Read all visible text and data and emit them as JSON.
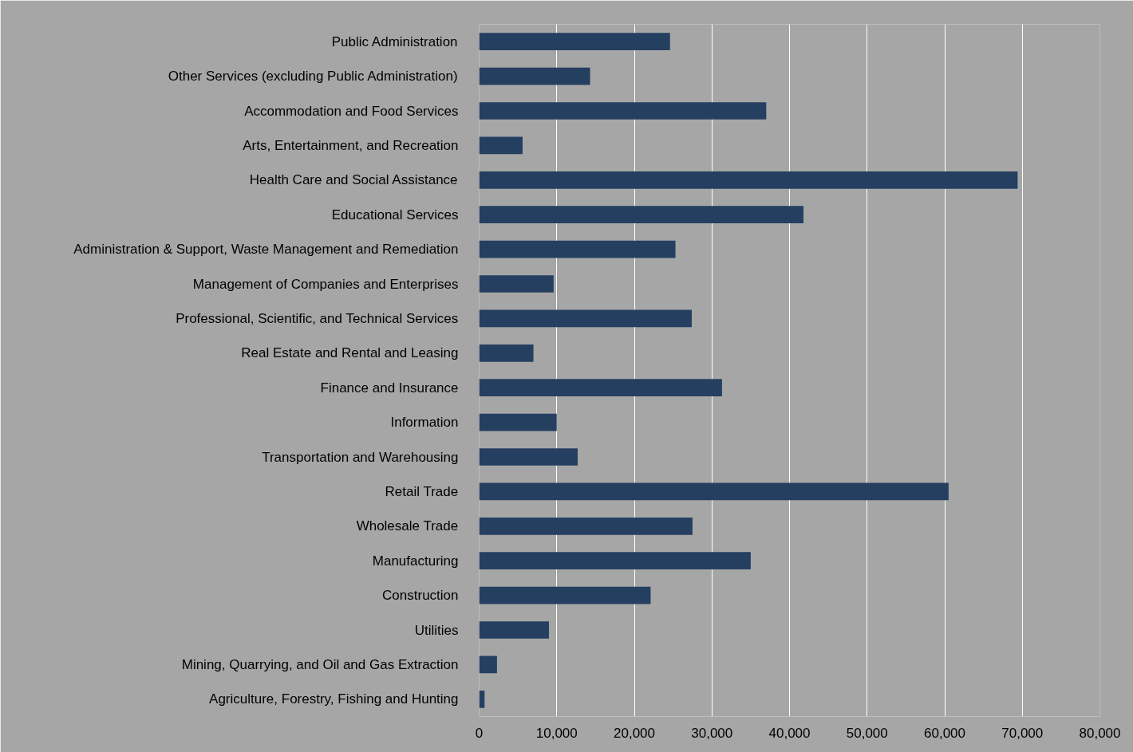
{
  "chart_data": {
    "type": "bar",
    "orientation": "horizontal",
    "categories": [
      "Public Administration",
      "Other Services (excluding Public Administration)",
      "Accommodation and Food Services",
      "Arts, Entertainment, and Recreation",
      "Health Care and Social Assistance",
      "Educational Services",
      "Administration & Support, Waste Management and Remediation",
      "Management of Companies and Enterprises",
      "Professional, Scientific, and Technical Services",
      "Real Estate and Rental and Leasing",
      "Finance and Insurance",
      "Information",
      "Transportation and Warehousing",
      "Retail Trade",
      "Wholesale Trade",
      "Manufacturing",
      "Construction",
      "Utilities",
      "Mining, Quarrying, and Oil and Gas Extraction",
      "Agriculture, Forestry, Fishing and Hunting"
    ],
    "values": [
      24600,
      14300,
      37000,
      5600,
      69400,
      41800,
      25300,
      9600,
      27400,
      7000,
      31300,
      10000,
      12700,
      60500,
      27500,
      35000,
      22100,
      9000,
      2300,
      700
    ],
    "color": "#243f60",
    "xlim": [
      0,
      80000
    ],
    "xticks": [
      0,
      {
        "value": 10000,
        "label": "10,000"
      },
      {
        "value": 20000,
        "label": "20,000"
      },
      {
        "value": 30000,
        "label": "30,000"
      },
      {
        "value": 40000,
        "label": "40,000"
      },
      {
        "value": 50000,
        "label": "50,000"
      },
      {
        "value": 60000,
        "label": "60,000"
      },
      {
        "value": 70000,
        "label": "70,000"
      },
      {
        "value": 80000,
        "label": "80,000"
      }
    ],
    "grid": "x"
  }
}
